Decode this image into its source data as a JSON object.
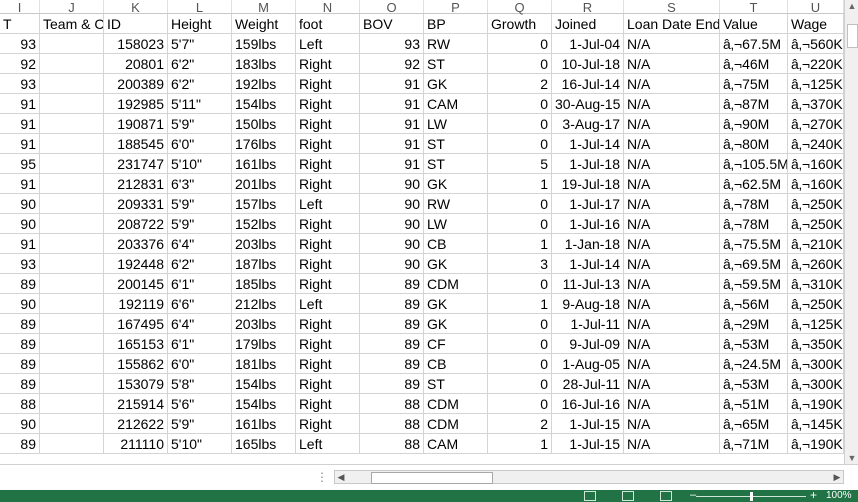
{
  "columns": [
    "I",
    "J",
    "K",
    "L",
    "M",
    "N",
    "O",
    "P",
    "Q",
    "R",
    "S",
    "T",
    "U"
  ],
  "headers": [
    "T",
    "Team & Co",
    "ID",
    "Height",
    "Weight",
    "foot",
    "BOV",
    "BP",
    "Growth",
    "Joined",
    "Loan Date End",
    "Value",
    "Wage"
  ],
  "rows": [
    [
      "93",
      "",
      "158023",
      "5'7\"",
      "159lbs",
      "Left",
      "93",
      "RW",
      "0",
      "1-Jul-04",
      "N/A",
      "â‚¬67.5M",
      "â‚¬560K"
    ],
    [
      "92",
      "",
      "20801",
      "6'2\"",
      "183lbs",
      "Right",
      "92",
      "ST",
      "0",
      "10-Jul-18",
      "N/A",
      "â‚¬46M",
      "â‚¬220K"
    ],
    [
      "93",
      "",
      "200389",
      "6'2\"",
      "192lbs",
      "Right",
      "91",
      "GK",
      "2",
      "16-Jul-14",
      "N/A",
      "â‚¬75M",
      "â‚¬125K"
    ],
    [
      "91",
      "",
      "192985",
      "5'11\"",
      "154lbs",
      "Right",
      "91",
      "CAM",
      "0",
      "30-Aug-15",
      "N/A",
      "â‚¬87M",
      "â‚¬370K"
    ],
    [
      "91",
      "",
      "190871",
      "5'9\"",
      "150lbs",
      "Right",
      "91",
      "LW",
      "0",
      "3-Aug-17",
      "N/A",
      "â‚¬90M",
      "â‚¬270K"
    ],
    [
      "91",
      "",
      "188545",
      "6'0\"",
      "176lbs",
      "Right",
      "91",
      "ST",
      "0",
      "1-Jul-14",
      "N/A",
      "â‚¬80M",
      "â‚¬240K"
    ],
    [
      "95",
      "",
      "231747",
      "5'10\"",
      "161lbs",
      "Right",
      "91",
      "ST",
      "5",
      "1-Jul-18",
      "N/A",
      "â‚¬105.5M",
      "â‚¬160K"
    ],
    [
      "91",
      "",
      "212831",
      "6'3\"",
      "201lbs",
      "Right",
      "90",
      "GK",
      "1",
      "19-Jul-18",
      "N/A",
      "â‚¬62.5M",
      "â‚¬160K"
    ],
    [
      "90",
      "",
      "209331",
      "5'9\"",
      "157lbs",
      "Left",
      "90",
      "RW",
      "0",
      "1-Jul-17",
      "N/A",
      "â‚¬78M",
      "â‚¬250K"
    ],
    [
      "90",
      "",
      "208722",
      "5'9\"",
      "152lbs",
      "Right",
      "90",
      "LW",
      "0",
      "1-Jul-16",
      "N/A",
      "â‚¬78M",
      "â‚¬250K"
    ],
    [
      "91",
      "",
      "203376",
      "6'4\"",
      "203lbs",
      "Right",
      "90",
      "CB",
      "1",
      "1-Jan-18",
      "N/A",
      "â‚¬75.5M",
      "â‚¬210K"
    ],
    [
      "93",
      "",
      "192448",
      "6'2\"",
      "187lbs",
      "Right",
      "90",
      "GK",
      "3",
      "1-Jul-14",
      "N/A",
      "â‚¬69.5M",
      "â‚¬260K"
    ],
    [
      "89",
      "",
      "200145",
      "6'1\"",
      "185lbs",
      "Right",
      "89",
      "CDM",
      "0",
      "11-Jul-13",
      "N/A",
      "â‚¬59.5M",
      "â‚¬310K"
    ],
    [
      "90",
      "",
      "192119",
      "6'6\"",
      "212lbs",
      "Left",
      "89",
      "GK",
      "1",
      "9-Aug-18",
      "N/A",
      "â‚¬56M",
      "â‚¬250K"
    ],
    [
      "89",
      "",
      "167495",
      "6'4\"",
      "203lbs",
      "Right",
      "89",
      "GK",
      "0",
      "1-Jul-11",
      "N/A",
      "â‚¬29M",
      "â‚¬125K"
    ],
    [
      "89",
      "",
      "165153",
      "6'1\"",
      "179lbs",
      "Right",
      "89",
      "CF",
      "0",
      "9-Jul-09",
      "N/A",
      "â‚¬53M",
      "â‚¬350K"
    ],
    [
      "89",
      "",
      "155862",
      "6'0\"",
      "181lbs",
      "Right",
      "89",
      "CB",
      "0",
      "1-Aug-05",
      "N/A",
      "â‚¬24.5M",
      "â‚¬300K"
    ],
    [
      "89",
      "",
      "153079",
      "5'8\"",
      "154lbs",
      "Right",
      "89",
      "ST",
      "0",
      "28-Jul-11",
      "N/A",
      "â‚¬53M",
      "â‚¬300K"
    ],
    [
      "88",
      "",
      "215914",
      "5'6\"",
      "154lbs",
      "Right",
      "88",
      "CDM",
      "0",
      "16-Jul-16",
      "N/A",
      "â‚¬51M",
      "â‚¬190K"
    ],
    [
      "90",
      "",
      "212622",
      "5'9\"",
      "161lbs",
      "Right",
      "88",
      "CDM",
      "2",
      "1-Jul-15",
      "N/A",
      "â‚¬65M",
      "â‚¬145K"
    ],
    [
      "89",
      "",
      "211110",
      "5'10\"",
      "165lbs",
      "Left",
      "88",
      "CAM",
      "1",
      "1-Jul-15",
      "N/A",
      "â‚¬71M",
      "â‚¬190K"
    ]
  ],
  "right_aligned_columns": [
    0,
    2,
    6,
    8,
    9
  ],
  "status": {
    "zoom": "100%",
    "accent_color": "#217346"
  },
  "scroll": {
    "dots": "⋮"
  }
}
